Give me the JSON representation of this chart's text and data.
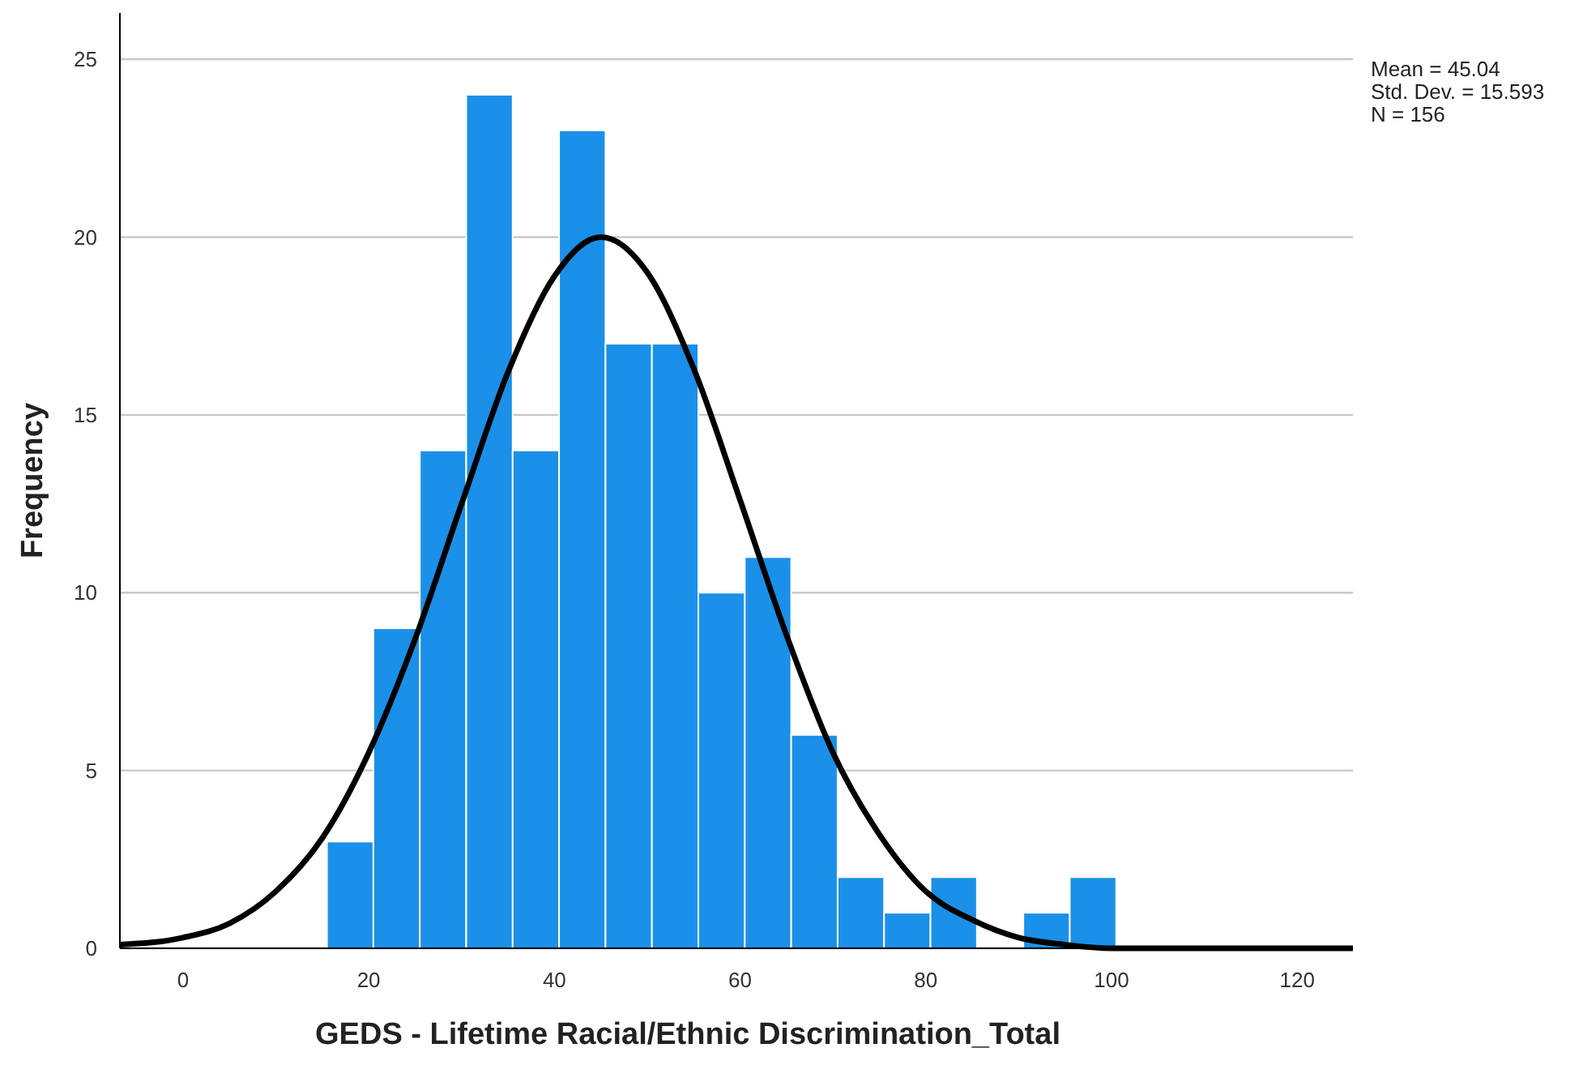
{
  "chart_data": {
    "type": "histogram",
    "xlabel": "GEDS - Lifetime Racial/Ethnic Discrimination_Total",
    "ylabel": "Frequency",
    "bins": [
      15.5,
      20.5,
      25.5,
      30.5,
      35.5,
      40.5,
      45.5,
      50.5,
      55.5,
      60.5,
      65.5,
      70.5,
      75.5,
      80.5,
      85.5,
      90.5,
      95.5,
      100.5
    ],
    "values": [
      3,
      9,
      14,
      24,
      14,
      23,
      17,
      17,
      10,
      11,
      6,
      2,
      1,
      2,
      0,
      1,
      2
    ],
    "color": "#1a90e8",
    "series": [
      {
        "type": "line",
        "color": "#000000",
        "x": [
          -6.8,
          0,
          5,
          10,
          15,
          20,
          25,
          30,
          35,
          40,
          45,
          50,
          55,
          60,
          65,
          70,
          75,
          80,
          85,
          90,
          95,
          100,
          110,
          126
        ],
        "values": [
          0.1,
          0.3,
          0.7,
          1.6,
          3.1,
          5.5,
          8.7,
          12.5,
          16.2,
          18.9,
          20.0,
          19.0,
          16.3,
          12.6,
          8.8,
          5.5,
          3.2,
          1.6,
          0.8,
          0.3,
          0.1,
          0.0,
          0.0,
          0.0
        ]
      }
    ],
    "xlim": [
      -6.8,
      126
    ],
    "xticks": [
      0,
      20,
      40,
      60,
      80,
      100,
      120
    ],
    "ylim": [
      0,
      26.3
    ],
    "yticks": [
      0,
      5,
      10,
      15,
      20,
      25
    ],
    "grid": "y",
    "marker": "none",
    "line_style": "solid",
    "annotations": [
      "Mean = 45.04",
      "Std. Dev. = 15.593",
      "N = 156"
    ]
  }
}
